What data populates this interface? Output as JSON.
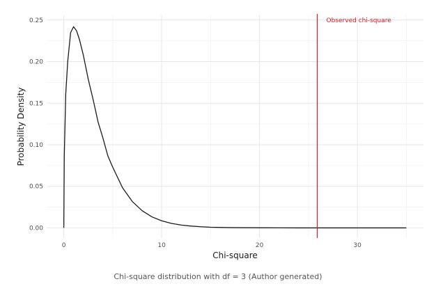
{
  "chart_data": {
    "type": "line",
    "xlabel": "Chi-square",
    "ylabel": "Probability Density",
    "xlim": [
      -1.75,
      36.75
    ],
    "ylim": [
      -0.0122,
      0.2557
    ],
    "x_ticks": [
      0,
      10,
      20,
      30
    ],
    "y_ticks": [
      0.0,
      0.05,
      0.1,
      0.15,
      0.2,
      0.25
    ],
    "x_tick_labels": [
      "0",
      "10",
      "20",
      "30"
    ],
    "y_tick_labels": [
      "0.00",
      "0.05",
      "0.10",
      "0.15",
      "0.20",
      "0.25"
    ],
    "grid": true,
    "series": [
      {
        "degrees_of_freedom": 3,
        "color": "#1a1a1a",
        "x": [
          0,
          0.05,
          0.2,
          0.4,
          0.7,
          1.0,
          1.3,
          1.6,
          2.0,
          2.5,
          3.0,
          3.5,
          4.0,
          4.5,
          5.0,
          6.0,
          7.0,
          8.0,
          9.0,
          10.0,
          11.0,
          12.0,
          13.0,
          14.0,
          15.0,
          16.0,
          17.0,
          18.0,
          20.0,
          22.0,
          24.0,
          26.0,
          28.0,
          30.0,
          32.0,
          35.0
        ],
        "y": [
          0,
          0.0866,
          0.161,
          0.2,
          0.235,
          0.242,
          0.2372,
          0.2266,
          0.2076,
          0.1788,
          0.1542,
          0.1275,
          0.108,
          0.0867,
          0.073,
          0.0483,
          0.0317,
          0.0207,
          0.0133,
          0.0085,
          0.0054,
          0.0034,
          0.0022,
          0.0014,
          0.0008,
          0.0005,
          0.0003,
          0.0002,
          0.0001,
          3e-05,
          1e-05,
          4e-06,
          1e-06,
          5e-07,
          2e-07,
          1e-07
        ]
      }
    ],
    "reference_line": {
      "x": 25.9,
      "color": "#e8141b",
      "label": "Observed chi-square"
    }
  },
  "caption": "Chi-square distribution with df = 3 (Author generated)"
}
